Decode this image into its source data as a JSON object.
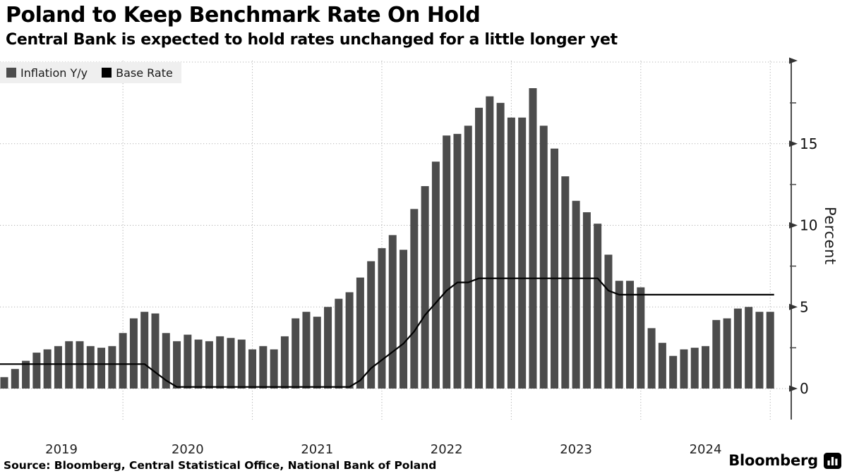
{
  "chart_data": {
    "type": "bar+line",
    "title": "Poland to Keep Benchmark Rate On Hold",
    "subtitle": "Central Bank is expected to hold rates unchanged for a little longer yet",
    "source": "Source: Bloomberg, Central Statistical Office, National Bank of Poland",
    "brand": "Bloomberg",
    "ylabel": "Percent",
    "ylim": [
      0,
      20
    ],
    "yticks_major": [
      0,
      5,
      10,
      15
    ],
    "yticks_minor": [
      2.5,
      7.5,
      12.5,
      17.5
    ],
    "grid": true,
    "legend_position": "top-left",
    "x_year_labels": [
      "2019",
      "2020",
      "2021",
      "2022",
      "2023",
      "2024"
    ],
    "x": [
      "2019-01",
      "2019-02",
      "2019-03",
      "2019-04",
      "2019-05",
      "2019-06",
      "2019-07",
      "2019-08",
      "2019-09",
      "2019-10",
      "2019-11",
      "2019-12",
      "2020-01",
      "2020-02",
      "2020-03",
      "2020-04",
      "2020-05",
      "2020-06",
      "2020-07",
      "2020-08",
      "2020-09",
      "2020-10",
      "2020-11",
      "2020-12",
      "2021-01",
      "2021-02",
      "2021-03",
      "2021-04",
      "2021-05",
      "2021-06",
      "2021-07",
      "2021-08",
      "2021-09",
      "2021-10",
      "2021-11",
      "2021-12",
      "2022-01",
      "2022-02",
      "2022-03",
      "2022-04",
      "2022-05",
      "2022-06",
      "2022-07",
      "2022-08",
      "2022-09",
      "2022-10",
      "2022-11",
      "2022-12",
      "2023-01",
      "2023-02",
      "2023-03",
      "2023-04",
      "2023-05",
      "2023-06",
      "2023-07",
      "2023-08",
      "2023-09",
      "2023-10",
      "2023-11",
      "2023-12",
      "2024-01",
      "2024-02",
      "2024-03",
      "2024-04",
      "2024-05",
      "2024-06",
      "2024-07",
      "2024-08",
      "2024-09",
      "2024-10",
      "2024-11",
      "2024-12"
    ],
    "legend": [
      {
        "name": "Inflation Y/y",
        "color": "#4c4c4c",
        "marker": "square"
      },
      {
        "name": "Base Rate",
        "color": "#000000",
        "marker": "square"
      }
    ],
    "series": [
      {
        "name": "Inflation Y/y",
        "type": "bar",
        "color": "#4c4c4c",
        "values": [
          0.7,
          1.2,
          1.7,
          2.2,
          2.4,
          2.6,
          2.9,
          2.9,
          2.6,
          2.5,
          2.6,
          3.4,
          4.3,
          4.7,
          4.6,
          3.4,
          2.9,
          3.3,
          3.0,
          2.9,
          3.2,
          3.1,
          3.0,
          2.4,
          2.6,
          2.4,
          3.2,
          4.3,
          4.7,
          4.4,
          5.0,
          5.5,
          5.9,
          6.8,
          7.8,
          8.6,
          9.4,
          8.5,
          11.0,
          12.4,
          13.9,
          15.5,
          15.6,
          16.1,
          17.2,
          17.9,
          17.5,
          16.6,
          16.6,
          18.4,
          16.1,
          14.7,
          13.0,
          11.5,
          10.8,
          10.1,
          8.2,
          6.6,
          6.6,
          6.2,
          3.7,
          2.8,
          2.0,
          2.4,
          2.5,
          2.6,
          4.2,
          4.3,
          4.9,
          5.0,
          4.7,
          4.7
        ]
      },
      {
        "name": "Base Rate",
        "type": "line",
        "color": "#000000",
        "values": [
          1.5,
          1.5,
          1.5,
          1.5,
          1.5,
          1.5,
          1.5,
          1.5,
          1.5,
          1.5,
          1.5,
          1.5,
          1.5,
          1.5,
          1.0,
          0.5,
          0.1,
          0.1,
          0.1,
          0.1,
          0.1,
          0.1,
          0.1,
          0.1,
          0.1,
          0.1,
          0.1,
          0.1,
          0.1,
          0.1,
          0.1,
          0.1,
          0.1,
          0.5,
          1.25,
          1.75,
          2.25,
          2.75,
          3.5,
          4.5,
          5.25,
          6.0,
          6.5,
          6.5,
          6.75,
          6.75,
          6.75,
          6.75,
          6.75,
          6.75,
          6.75,
          6.75,
          6.75,
          6.75,
          6.75,
          6.75,
          6.0,
          5.75,
          5.75,
          5.75,
          5.75,
          5.75,
          5.75,
          5.75,
          5.75,
          5.75,
          5.75,
          5.75,
          5.75,
          5.75,
          5.75,
          5.75
        ]
      }
    ]
  },
  "colors": {
    "bar": "#4c4c4c",
    "line": "#000000",
    "grid": "#b3b3b3",
    "axis": "#4d4d4d",
    "legend_bg": "#efefef",
    "text": "#1a1a1a"
  }
}
